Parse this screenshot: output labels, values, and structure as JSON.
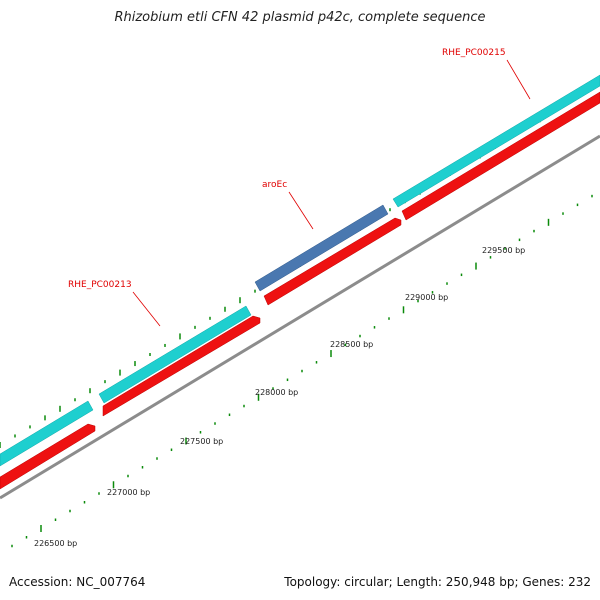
{
  "title": "Rhizobium etli CFN 42 plasmid p42c, complete sequence",
  "footer": {
    "accession": "Accession: NC_007764",
    "summary": "Topology: circular; Length: 250,948 bp; Genes: 232"
  },
  "colors": {
    "forward_cds": "#1ecfcf",
    "highlight_cds": "#4a78b0",
    "reverse_cds": "#ee1111",
    "backbone": "#8c8c8c",
    "tick": "#0a8a0a",
    "label": "#e00000"
  },
  "gene_labels": [
    "RHE_PC00213",
    "aroEc",
    "RHE_PC00215"
  ],
  "scale_labels": [
    "226500 bp",
    "227000 bp",
    "227500 bp",
    "228000 bp",
    "228500 bp",
    "229000 bp",
    "229500 bp"
  ]
}
